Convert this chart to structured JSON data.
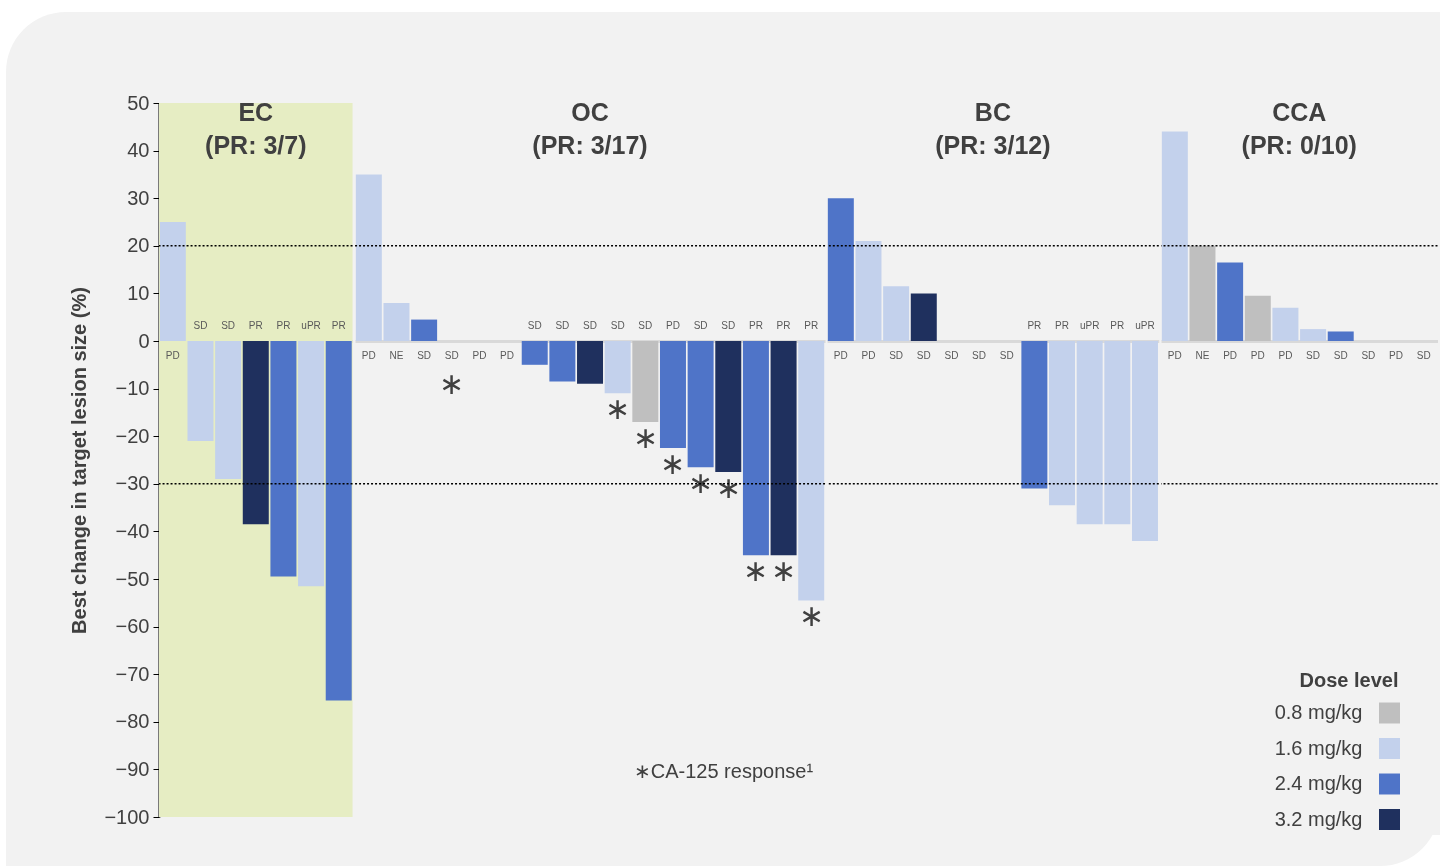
{
  "chart_data": [
    {
      "type": "bar",
      "stacked": true,
      "title": "EC",
      "subtitle": "(PR: 3/7)",
      "ylabel": "Best change in target lesion size (%)",
      "ylim": [
        -100,
        50
      ],
      "yticks": [
        {
          "value": -100,
          "label": "−100"
        },
        {
          "value": -90,
          "label": "−90"
        },
        {
          "value": -80,
          "label": "−80"
        },
        {
          "value": -70,
          "label": "−70"
        },
        {
          "value": -60,
          "label": "−60"
        },
        {
          "value": -50,
          "label": "−50"
        },
        {
          "value": -40,
          "label": "−40"
        },
        {
          "value": -30,
          "label": "−30"
        },
        {
          "value": -20,
          "label": "−20"
        },
        {
          "value": -10,
          "label": "−10"
        },
        0,
        10,
        20,
        30,
        40,
        50
      ],
      "categories": [
        "PD",
        "SD",
        "SD",
        "PR",
        "PR",
        "uPR",
        "PR"
      ],
      "series": [
        {
          "color": "#c3d1ec",
          "values": [
            25,
            -21,
            -29,
            null,
            null,
            -51.5,
            null
          ]
        },
        {
          "color": "#4f74c8",
          "values": [
            null,
            null,
            null,
            null,
            -49.5,
            null,
            -75.5
          ]
        },
        {
          "color": "#1f305e",
          "values": [
            null,
            null,
            null,
            -38.5,
            null,
            null,
            null
          ]
        }
      ],
      "bands": [
        {
          "axis": "y",
          "from": -100,
          "to": 50,
          "color": "#e6edc3"
        }
      ],
      "ref_lines": [
        {
          "axis": "y",
          "value": 20,
          "color": "#000000",
          "line_style": "dotted"
        },
        {
          "axis": "y",
          "value": -30,
          "color": "#000000",
          "line_style": "dotted"
        }
      ]
    },
    {
      "type": "bar",
      "stacked": true,
      "title": "OC",
      "subtitle": "(PR: 3/17)",
      "ylim": [
        -100,
        50
      ],
      "yticks": [
        -100,
        -90,
        -80,
        -70,
        -60,
        -50,
        -40,
        -30,
        -20,
        -10,
        0,
        10,
        20,
        30,
        40,
        50
      ],
      "tick_labels": "x",
      "categories": [
        "PD",
        "NE",
        "SD",
        "SD",
        "PD",
        "PD",
        "SD",
        "SD",
        "SD",
        "SD",
        "SD",
        "PD",
        "SD",
        "SD",
        "PR",
        "PR",
        "PR"
      ],
      "series": [
        {
          "color": "#bfbfbf",
          "values": [
            null,
            null,
            null,
            null,
            null,
            null,
            null,
            null,
            null,
            null,
            -17,
            null,
            null,
            null,
            null,
            null,
            null
          ],
          "value_labels": [
            null,
            null,
            null,
            null,
            null,
            null,
            null,
            null,
            null,
            null,
            "∗",
            null,
            null,
            null,
            null,
            null,
            null
          ]
        },
        {
          "color": "#c3d1ec",
          "values": [
            35,
            8,
            null,
            0,
            0,
            0,
            null,
            null,
            null,
            -11,
            null,
            null,
            null,
            null,
            null,
            null,
            -54.5
          ],
          "value_labels": [
            null,
            null,
            null,
            "∗",
            null,
            null,
            null,
            null,
            null,
            "∗",
            null,
            null,
            null,
            null,
            null,
            null,
            "∗"
          ]
        },
        {
          "color": "#4f74c8",
          "values": [
            null,
            null,
            4.5,
            null,
            null,
            null,
            -5,
            -8.5,
            null,
            null,
            null,
            -22.5,
            -26.5,
            null,
            -45,
            null,
            null
          ],
          "value_labels": [
            null,
            null,
            null,
            null,
            null,
            null,
            null,
            null,
            null,
            null,
            null,
            "∗",
            "∗",
            null,
            "∗",
            null,
            null
          ]
        },
        {
          "color": "#1f305e",
          "values": [
            null,
            null,
            null,
            null,
            null,
            null,
            null,
            null,
            -9,
            null,
            null,
            null,
            null,
            -27.5,
            null,
            -45,
            null
          ],
          "value_labels": [
            null,
            null,
            null,
            null,
            null,
            null,
            null,
            null,
            null,
            null,
            null,
            null,
            null,
            "∗",
            null,
            "∗",
            null
          ]
        }
      ],
      "annotations": [
        "∗CA-125 response¹"
      ],
      "ref_lines": [
        {
          "axis": "y",
          "value": 20,
          "color": "#000000",
          "line_style": "dotted"
        },
        {
          "axis": "y",
          "value": -30,
          "color": "#000000",
          "line_style": "dotted"
        }
      ]
    },
    {
      "type": "bar",
      "stacked": true,
      "title": "BC",
      "subtitle": "(PR: 3/12)",
      "ylim": [
        -100,
        50
      ],
      "yticks": [
        -100,
        -90,
        -80,
        -70,
        -60,
        -50,
        -40,
        -30,
        -20,
        -10,
        0,
        10,
        20,
        30,
        40,
        50
      ],
      "tick_labels": "x",
      "categories": [
        "PD",
        "PD",
        "SD",
        "SD",
        "SD",
        "SD",
        "SD",
        "PR",
        "PR",
        "uPR",
        "PR",
        "uPR"
      ],
      "series": [
        {
          "color": "#c3d1ec",
          "values": [
            null,
            21,
            11.5,
            null,
            0,
            0,
            0,
            null,
            -34.5,
            -38.5,
            -38.5,
            -42
          ]
        },
        {
          "color": "#4f74c8",
          "values": [
            30,
            null,
            null,
            null,
            null,
            null,
            null,
            -31,
            null,
            null,
            null,
            null
          ]
        },
        {
          "color": "#1f305e",
          "values": [
            null,
            null,
            null,
            10,
            null,
            null,
            null,
            null,
            null,
            null,
            null,
            null
          ]
        }
      ],
      "ref_lines": [
        {
          "axis": "y",
          "value": 20,
          "color": "#000000",
          "line_style": "dotted"
        },
        {
          "axis": "y",
          "value": -30,
          "color": "#000000",
          "line_style": "dotted"
        }
      ]
    },
    {
      "type": "bar",
      "stacked": true,
      "title": "CCA",
      "subtitle": "(PR: 0/10)",
      "ylim": [
        -100,
        50
      ],
      "yticks": [
        -100,
        -90,
        -80,
        -70,
        -60,
        -50,
        -40,
        -30,
        -20,
        -10,
        0,
        10,
        20,
        30,
        40,
        50
      ],
      "tick_labels": "x",
      "categories": [
        "PD",
        "NE",
        "PD",
        "PD",
        "PD",
        "SD",
        "SD",
        "SD",
        "PD",
        "SD"
      ],
      "legend": "bottom right",
      "legend_title": "Dose level",
      "series": [
        {
          "name": "0.8 mg/kg",
          "color": "#bfbfbf",
          "values": [
            null,
            20,
            null,
            9.5,
            null,
            null,
            null,
            null,
            null,
            null
          ]
        },
        {
          "name": "1.6 mg/kg",
          "color": "#c3d1ec",
          "values": [
            44,
            null,
            null,
            null,
            7,
            2.5,
            null,
            0,
            0,
            0
          ]
        },
        {
          "name": "2.4 mg/kg",
          "color": "#4f74c8",
          "values": [
            null,
            null,
            16.5,
            null,
            null,
            null,
            2,
            null,
            null,
            null
          ]
        },
        {
          "name": "3.2 mg/kg",
          "color": "#1f305e",
          "values": [
            null,
            null,
            null,
            null,
            null,
            null,
            null,
            null,
            null,
            null
          ]
        }
      ],
      "ref_lines": [
        {
          "axis": "y",
          "value": 20,
          "color": "#000000",
          "line_style": "dotted"
        },
        {
          "axis": "y",
          "value": -30,
          "color": "#000000",
          "line_style": "dotted"
        }
      ]
    }
  ]
}
